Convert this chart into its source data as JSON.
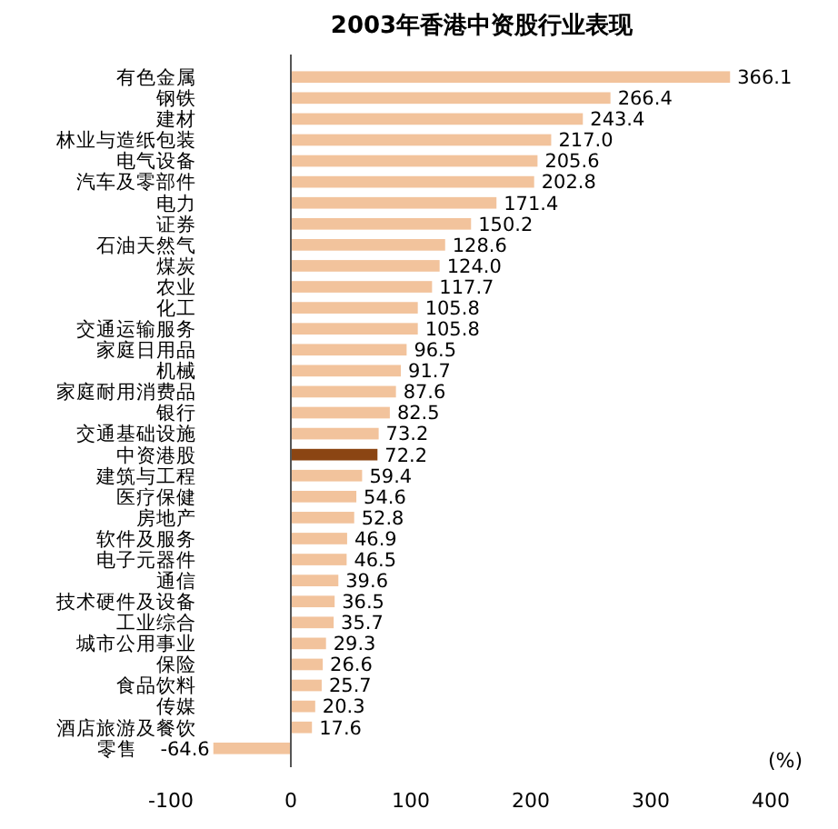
{
  "chart_data": {
    "type": "bar",
    "orientation": "horizontal",
    "title": "2003年香港中资股行业表现",
    "xlabel": "(%)",
    "categories": [
      "有色金属",
      "钢铁",
      "建材",
      "林业与造纸包装",
      "电气设备",
      "汽车及零部件",
      "电力",
      "证券",
      "石油天然气",
      "煤炭",
      "农业",
      "化工",
      "交通运输服务",
      "家庭日用品",
      "机械",
      "家庭耐用消费品",
      "银行",
      "交通基础设施",
      "中资港股",
      "建筑与工程",
      "医疗保健",
      "房地产",
      "软件及服务",
      "电子元器件",
      "通信",
      "技术硬件及设备",
      "工业综合",
      "城市公用事业",
      "保险",
      "食品饮料",
      "传媒",
      "酒店旅游及餐饮",
      "零售"
    ],
    "values": [
      366.1,
      266.4,
      243.4,
      217.0,
      205.6,
      202.8,
      171.4,
      150.2,
      128.6,
      124.0,
      117.7,
      105.8,
      105.8,
      96.5,
      91.7,
      87.6,
      82.5,
      73.2,
      72.2,
      59.4,
      54.6,
      52.8,
      46.9,
      46.5,
      39.6,
      36.5,
      35.7,
      29.3,
      26.6,
      25.7,
      20.3,
      17.6,
      -64.6
    ],
    "value_labels": [
      "366.1",
      "266.4",
      "243.4",
      "217.0",
      "205.6",
      "202.8",
      "171.4",
      "150.2",
      "128.6",
      "124.0",
      "117.7",
      "105.8",
      "105.8",
      "96.5",
      "91.7",
      "87.6",
      "82.5",
      "73.2",
      "72.2",
      "59.4",
      "54.6",
      "52.8",
      "46.9",
      "46.5",
      "39.6",
      "36.5",
      "35.7",
      "29.3",
      "26.6",
      "25.7",
      "20.3",
      "17.6",
      "-64.6"
    ],
    "colors": [
      "#f2c39c",
      "#f2c39c",
      "#f2c39c",
      "#f2c39c",
      "#f2c39c",
      "#f2c39c",
      "#f2c39c",
      "#f2c39c",
      "#f2c39c",
      "#f2c39c",
      "#f2c39c",
      "#f2c39c",
      "#f2c39c",
      "#f2c39c",
      "#f2c39c",
      "#f2c39c",
      "#f2c39c",
      "#f2c39c",
      "#8b4513",
      "#f2c39c",
      "#f2c39c",
      "#f2c39c",
      "#f2c39c",
      "#f2c39c",
      "#f2c39c",
      "#f2c39c",
      "#f2c39c",
      "#f2c39c",
      "#f2c39c",
      "#f2c39c",
      "#f2c39c",
      "#f2c39c",
      "#f2c39c"
    ],
    "xlim": [
      -100,
      400
    ],
    "xticks": [
      -100,
      0,
      100,
      200,
      300,
      400
    ]
  }
}
